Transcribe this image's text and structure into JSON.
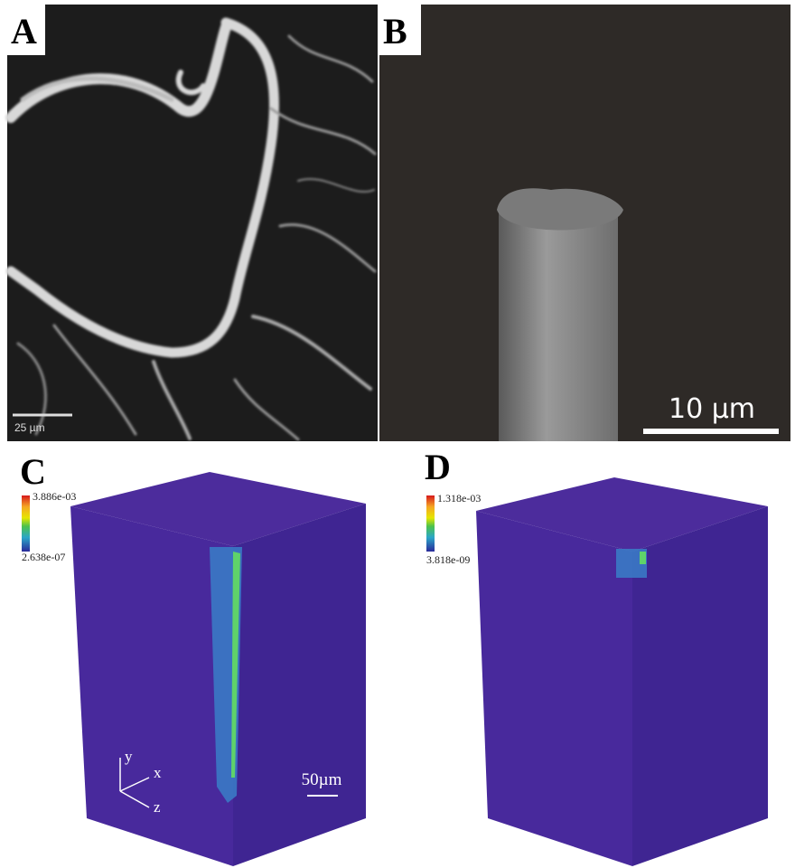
{
  "panels": [
    {
      "label": "A",
      "scale_bar": "25 µm"
    },
    {
      "label": "B",
      "scale_bar": "10 µm"
    },
    {
      "label": "C",
      "colorbar": {
        "max": "3.886e-03",
        "min": "2.638e-07"
      },
      "axes": {
        "y": "y",
        "x": "x",
        "z": "z"
      },
      "scale_bar": "50µm"
    },
    {
      "label": "D",
      "colorbar": {
        "max": "1.318e-03",
        "min": "3.818e-09"
      }
    }
  ]
}
